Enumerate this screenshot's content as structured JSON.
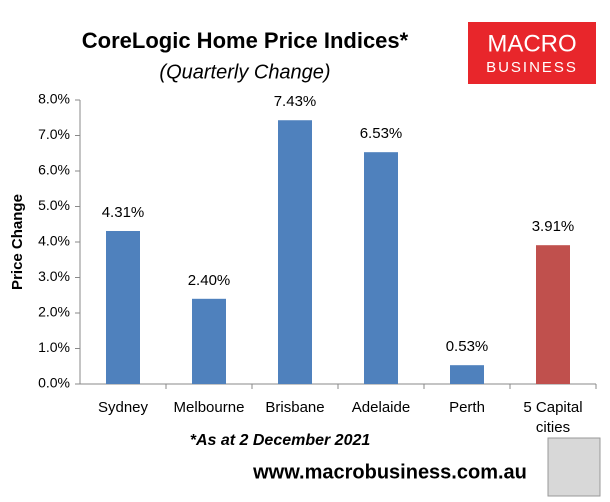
{
  "chart_data": {
    "type": "bar",
    "title": "CoreLogic Home Price Indices*",
    "subtitle": "(Quarterly Change)",
    "y_label": "Price Change",
    "footnote": "*As at 2 December 2021",
    "website": "www.macrobusiness.com.au",
    "logo": [
      "MACRO",
      "BUSINESS"
    ],
    "categories": [
      "Sydney",
      "Melbourne",
      "Brisbane",
      "Adelaide",
      "Perth",
      "5 Capital cities"
    ],
    "values": [
      4.31,
      2.4,
      7.43,
      6.53,
      0.53,
      3.91
    ],
    "value_labels": [
      "4.31%",
      "2.40%",
      "7.43%",
      "6.53%",
      "0.53%",
      "3.91%"
    ],
    "colors": [
      "#4f81bd",
      "#4f81bd",
      "#4f81bd",
      "#4f81bd",
      "#4f81bd",
      "#c0504d"
    ],
    "ylim": [
      0,
      8
    ],
    "yticks": [
      {
        "value": 0,
        "label": "0.0%"
      },
      {
        "value": 1,
        "label": "1.0%"
      },
      {
        "value": 2,
        "label": "2.0%"
      },
      {
        "value": 3,
        "label": "3.0%"
      },
      {
        "value": 4,
        "label": "4.0%"
      },
      {
        "value": 5,
        "label": "5.0%"
      },
      {
        "value": 6,
        "label": "6.0%"
      },
      {
        "value": 7,
        "label": "7.0%"
      },
      {
        "value": 8,
        "label": "8.0%"
      }
    ],
    "grid": false
  }
}
